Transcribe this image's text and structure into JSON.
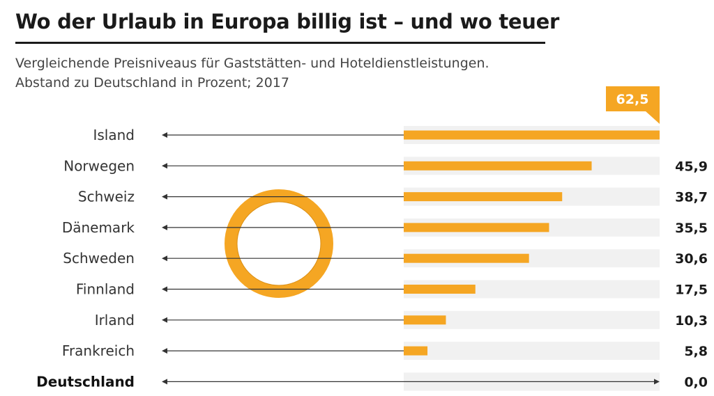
{
  "title": "Wo der Urlaub in Europa billig ist – und wo teuer",
  "subtitle_line1": "Vergleichende Preisniveaus für Gaststätten- und Hoteldienstleistungen.",
  "subtitle_line2": "Abstand zu Deutschland in Prozent; 2017",
  "colors": {
    "bar": "#f5a623",
    "track": "#f1f1f1",
    "arrow": "#333333",
    "text": "#222222"
  },
  "chart_data": {
    "type": "bar",
    "orientation": "horizontal",
    "categories": [
      "Island",
      "Norwegen",
      "Schweiz",
      "Dänemark",
      "Schweden",
      "Finnland",
      "Irland",
      "Frankreich",
      "Deutschland"
    ],
    "values": [
      62.5,
      45.9,
      38.7,
      35.5,
      30.6,
      17.5,
      10.3,
      5.8,
      0.0
    ],
    "value_labels": [
      "62,5",
      "45,9",
      "38,7",
      "35,5",
      "30,6",
      "17,5",
      "10,3",
      "5,8",
      "0,0"
    ],
    "highlight_category": "Deutschland",
    "xlim": [
      0,
      62.5
    ],
    "grid": false,
    "legend": "none"
  }
}
